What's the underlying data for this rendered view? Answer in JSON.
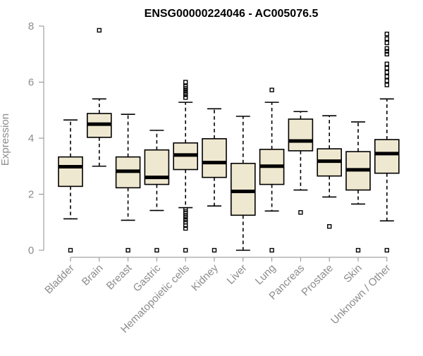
{
  "chart_data": {
    "type": "box",
    "title": "ENSG00000224046 - AC005076.5",
    "ylabel": "Expression",
    "xlabel": "",
    "ylim": [
      0,
      8
    ],
    "yticks": [
      0,
      2,
      4,
      6,
      8
    ],
    "grid": false,
    "box_fill": "#efe8d0",
    "categories": [
      "Bladder",
      "Brain",
      "Breast",
      "Gastric",
      "Hematopoietic cells",
      "Kidney",
      "Liver",
      "Lung",
      "Pancreas",
      "Prostate",
      "Skin",
      "Unknown / Other"
    ],
    "boxes": [
      {
        "whisker_low": 1.12,
        "q1": 2.28,
        "median": 2.98,
        "q3": 3.33,
        "whisker_high": 4.65,
        "outliers": [
          0
        ]
      },
      {
        "whisker_low": 3.0,
        "q1": 4.03,
        "median": 4.5,
        "q3": 4.88,
        "whisker_high": 5.4,
        "outliers": [
          7.85
        ]
      },
      {
        "whisker_low": 1.07,
        "q1": 2.23,
        "median": 2.82,
        "q3": 3.33,
        "whisker_high": 4.85,
        "outliers": [
          0
        ]
      },
      {
        "whisker_low": 1.42,
        "q1": 2.35,
        "median": 2.6,
        "q3": 3.58,
        "whisker_high": 4.28,
        "outliers": [
          0
        ]
      },
      {
        "whisker_low": 1.52,
        "q1": 2.88,
        "median": 3.4,
        "q3": 3.83,
        "whisker_high": 5.28,
        "outliers": [
          0,
          0.78,
          0.88,
          1.0,
          1.08,
          1.18,
          1.25,
          1.32,
          1.38,
          1.45,
          5.45,
          5.55,
          5.62,
          5.7,
          5.78,
          5.85,
          6.0
        ]
      },
      {
        "whisker_low": 1.58,
        "q1": 2.6,
        "median": 3.13,
        "q3": 3.98,
        "whisker_high": 5.05,
        "outliers": [
          0
        ]
      },
      {
        "whisker_low": 0.0,
        "q1": 1.25,
        "median": 2.1,
        "q3": 3.1,
        "whisker_high": 4.78,
        "outliers": []
      },
      {
        "whisker_low": 1.4,
        "q1": 2.35,
        "median": 3.0,
        "q3": 3.6,
        "whisker_high": 5.28,
        "outliers": [
          0,
          5.72
        ]
      },
      {
        "whisker_low": 2.15,
        "q1": 3.55,
        "median": 3.9,
        "q3": 4.68,
        "whisker_high": 4.95,
        "outliers": [
          1.35
        ]
      },
      {
        "whisker_low": 1.9,
        "q1": 2.65,
        "median": 3.18,
        "q3": 3.62,
        "whisker_high": 4.8,
        "outliers": [
          0.85
        ]
      },
      {
        "whisker_low": 1.65,
        "q1": 2.15,
        "median": 2.87,
        "q3": 3.52,
        "whisker_high": 4.58,
        "outliers": [
          0
        ]
      },
      {
        "whisker_low": 1.05,
        "q1": 2.75,
        "median": 3.45,
        "q3": 3.95,
        "whisker_high": 5.4,
        "outliers": [
          0,
          5.9,
          6.05,
          6.2,
          6.35,
          6.5,
          6.65,
          7.0,
          7.1,
          7.2,
          7.4,
          7.55,
          7.72
        ]
      }
    ]
  }
}
